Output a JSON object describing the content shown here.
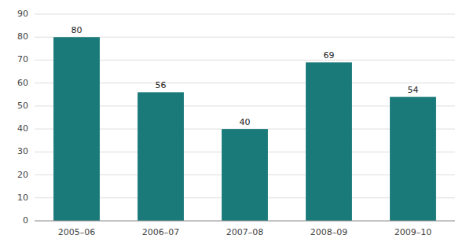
{
  "chart_data": {
    "type": "bar",
    "categories": [
      "2005–06",
      "2006–07",
      "2007–08",
      "2008–09",
      "2009–10"
    ],
    "values": [
      80,
      56,
      40,
      69,
      54
    ],
    "color": "#1a7a7a",
    "ylim": [
      0,
      90
    ],
    "yticks": [
      0,
      10,
      20,
      30,
      40,
      50,
      60,
      70,
      80,
      90
    ],
    "grid": true,
    "data_labels": true
  }
}
